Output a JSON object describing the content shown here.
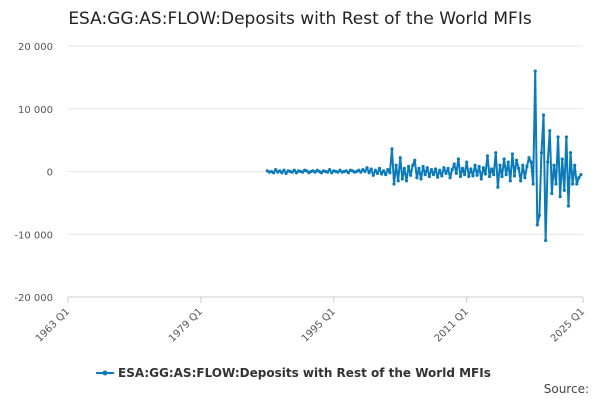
{
  "chart_data": {
    "type": "line",
    "title": "ESA:GG:AS:FLOW:Deposits with Rest of the World MFIs",
    "xlabel": "",
    "ylabel": "",
    "ylim": [
      -20000,
      20000
    ],
    "xlim": [
      "1963 Q1",
      "2025 Q1"
    ],
    "x_ticks": [
      "1963 Q1",
      "1979 Q1",
      "1995 Q1",
      "2011 Q1",
      "2025 Q1"
    ],
    "y_ticks": [
      20000,
      10000,
      0,
      -10000,
      -20000
    ],
    "y_tick_labels": [
      "20 000",
      "10 000",
      "0",
      "-10 000",
      "-20 000"
    ],
    "grid": true,
    "legend_position": "bottom",
    "color": "#0a7ab8",
    "series": [
      {
        "name": "ESA:GG:AS:FLOW:Deposits with Rest of the World MFIs",
        "start": "1987 Q1",
        "frequency": "quarterly",
        "values": [
          100,
          -100,
          0,
          -200,
          300,
          -100,
          100,
          -200,
          200,
          -300,
          100,
          0,
          -100,
          200,
          -200,
          100,
          0,
          -100,
          200,
          100,
          -200,
          0,
          100,
          -100,
          200,
          0,
          -200,
          100,
          0,
          -100,
          300,
          -200,
          100,
          0,
          -100,
          200,
          -100,
          0,
          100,
          -200,
          200,
          100,
          -100,
          0,
          200,
          -100,
          300,
          0,
          600,
          -200,
          400,
          -600,
          200,
          -300,
          500,
          -400,
          100,
          -500,
          300,
          -200,
          3600,
          -2000,
          1000,
          -1500,
          2200,
          -1200,
          500,
          -1500,
          800,
          -600,
          1000,
          1800,
          -1000,
          500,
          -1200,
          800,
          -500,
          600,
          -800,
          300,
          -500,
          400,
          -900,
          200,
          -700,
          600,
          -300,
          500,
          -1000,
          300,
          1200,
          -300,
          2000,
          -800,
          500,
          -500,
          1500,
          -800,
          400,
          -700,
          1000,
          -600,
          800,
          -1200,
          600,
          -400,
          2500,
          -800,
          400,
          -500,
          3000,
          -2500,
          1000,
          -800,
          2000,
          -500,
          1500,
          -1500,
          2800,
          -700,
          1800,
          500,
          -1500,
          1000,
          -1000,
          800,
          2200,
          1500,
          -2000,
          16000,
          -8500,
          -7000,
          3000,
          9000,
          -11000,
          1500,
          6500,
          -3500,
          1000,
          -2000,
          5500,
          -4000,
          2000,
          -3000,
          5500,
          -5500,
          3000,
          -2000,
          1000,
          -2000,
          -1000,
          -500
        ]
      }
    ]
  },
  "source_label": "Source:"
}
